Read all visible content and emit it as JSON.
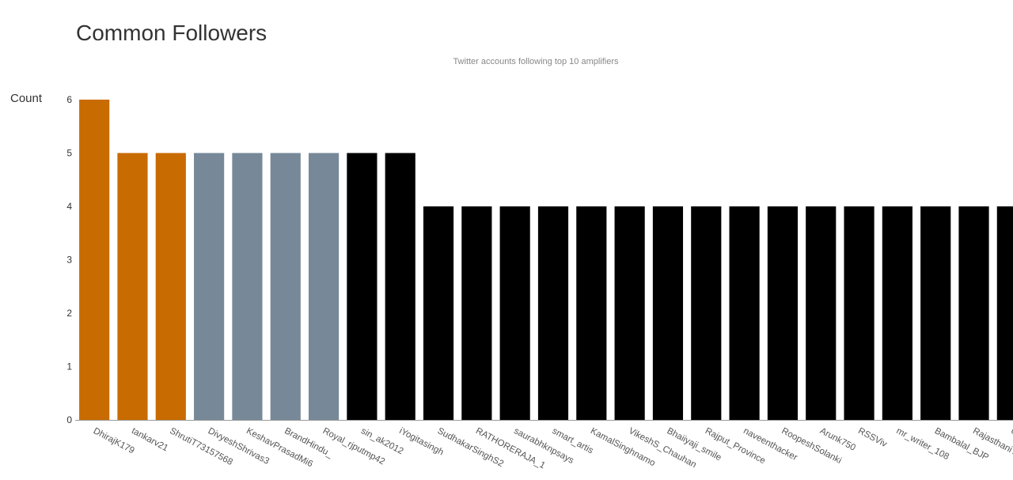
{
  "chart_data": {
    "type": "bar",
    "title": "Common Followers",
    "subtitle": "Twitter accounts following top 10 amplifiers",
    "ylabel": "Count",
    "xlabel": "",
    "ylim": [
      0,
      6
    ],
    "yticks": [
      0,
      1,
      2,
      3,
      4,
      5,
      6
    ],
    "grid": false,
    "categories": [
      "DhirajK179",
      "tankarv21",
      "ShrutiT73157568",
      "DivyeshShrivas3",
      "KeshavPrasadMi6",
      "BrandHindu_",
      "Royal_rjputmp42",
      "sin_ak2012",
      "iYogitasingh",
      "SudhakarSinghS2",
      "RATHORERAJA_1",
      "saurabhknpsays",
      "smart_artis",
      "KamalSinghnamo",
      "VikeshS_Chauhan",
      "Bhaiiyaji_smile",
      "Rajput_Province",
      "naveenthacker",
      "RoopeshSolanki",
      "Arunk750",
      "RSSViv",
      "mr_writer_108",
      "Bambalal_BJP",
      "RajasthaniTweet",
      "chrajveersingh"
    ],
    "values": [
      6,
      5,
      5,
      5,
      5,
      5,
      5,
      5,
      5,
      4,
      4,
      4,
      4,
      4,
      4,
      4,
      4,
      4,
      4,
      4,
      4,
      4,
      4,
      4,
      4
    ],
    "colors": [
      "#c86b00",
      "#c86b00",
      "#c86b00",
      "#778899",
      "#778899",
      "#778899",
      "#778899",
      "#000000",
      "#000000",
      "#000000",
      "#000000",
      "#000000",
      "#000000",
      "#000000",
      "#000000",
      "#000000",
      "#000000",
      "#000000",
      "#000000",
      "#000000",
      "#000000",
      "#000000",
      "#000000",
      "#000000",
      "#000000"
    ]
  }
}
